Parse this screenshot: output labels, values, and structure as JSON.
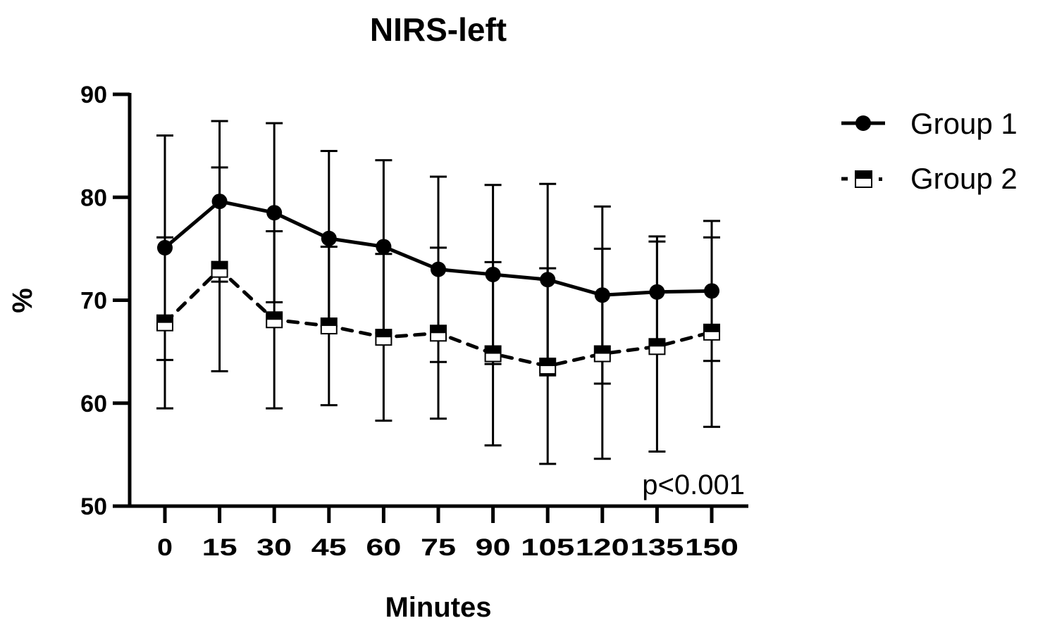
{
  "chart_data": {
    "type": "line",
    "title": "NIRS-left",
    "xlabel": "Minutes",
    "ylabel": "%",
    "x": [
      0,
      15,
      30,
      45,
      60,
      75,
      90,
      105,
      120,
      135,
      150
    ],
    "xtick_labels": [
      "0",
      "15",
      "30",
      "45",
      "60",
      "75",
      "90",
      "105",
      "120",
      "135",
      "150"
    ],
    "yticks": [
      50,
      60,
      70,
      80,
      90
    ],
    "ytick_labels": [
      "50",
      "60",
      "70",
      "80",
      "90"
    ],
    "xlim": [
      0,
      150
    ],
    "ylim": [
      50,
      90
    ],
    "grid": false,
    "legend_position": "top-right",
    "annotation": "p<0.001",
    "series": [
      {
        "name": "Group 1",
        "marker": "circle-filled",
        "line": "solid",
        "color": "#000000",
        "values": [
          75.1,
          79.6,
          78.5,
          76.0,
          75.2,
          73.0,
          72.5,
          72.0,
          70.5,
          70.8,
          70.9
        ],
        "error": [
          10.9,
          7.8,
          8.7,
          8.5,
          8.4,
          9.0,
          8.7,
          9.3,
          8.6,
          5.4,
          6.8
        ]
      },
      {
        "name": "Group 2",
        "marker": "square-half-filled",
        "line": "dashed",
        "color": "#000000",
        "values": [
          67.8,
          73.0,
          68.1,
          67.5,
          66.4,
          66.8,
          64.8,
          63.6,
          64.8,
          65.5,
          66.9
        ],
        "error": [
          8.3,
          9.9,
          8.6,
          7.7,
          8.1,
          8.3,
          8.9,
          9.5,
          10.2,
          10.2,
          9.2
        ]
      }
    ]
  }
}
